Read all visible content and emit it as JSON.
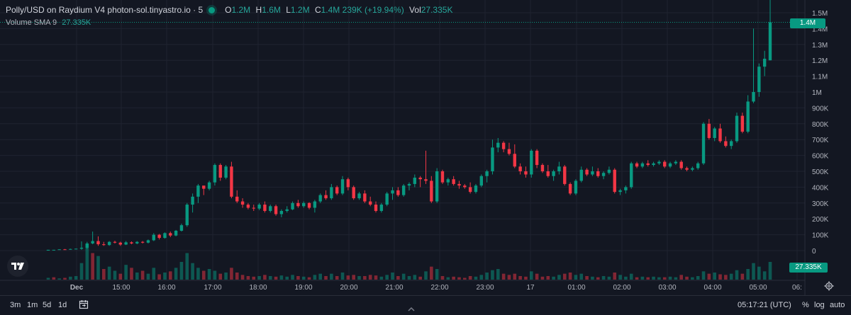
{
  "legend": {
    "symbol": "Polly/USD on Raydium V4 photon-sol.tinyastro.io · 5",
    "open_label": "O",
    "open": "1.2M",
    "high_label": "H",
    "high": "1.6M",
    "low_label": "L",
    "low": "1.2M",
    "close_label": "C",
    "close": "1.4M",
    "change": "239K (+19.94%)",
    "vol_label": "Vol",
    "vol": "27.335K"
  },
  "volume_legend": {
    "label": "Volume",
    "sma": "SMA 9",
    "value": "27.335K"
  },
  "price_tag": "1.4M",
  "volume_tag": "27.335K",
  "toolbar": {
    "ranges": [
      "3m",
      "1m",
      "5d",
      "1d"
    ],
    "time": "05:17:21 (UTC)",
    "percent": "%",
    "log": "log",
    "auto": "auto"
  },
  "colors": {
    "up": "#089981",
    "down": "#f23645",
    "background": "#131722",
    "grid": "#1f2330"
  },
  "chart_data": {
    "type": "candlestick",
    "title": "Polly/USD on Raydium V4 photon-sol.tinyastro.io · 5",
    "y_ticks": [
      "1.5M",
      "1.4M",
      "1.3M",
      "1.2M",
      "1.1M",
      "1M",
      "900K",
      "800K",
      "700K",
      "600K",
      "500K",
      "400K",
      "300K",
      "200K",
      "100K",
      "0"
    ],
    "x_ticks": [
      "Dec",
      "15:00",
      "16:00",
      "17:00",
      "18:00",
      "19:00",
      "20:00",
      "21:00",
      "22:00",
      "23:00",
      "17",
      "01:00",
      "02:00",
      "03:00",
      "04:00",
      "05:00",
      "06:"
    ],
    "ylim": [
      0,
      1500000
    ],
    "grid": true,
    "candles": [
      [
        0,
        5,
        5,
        5
      ],
      [
        5,
        5,
        5,
        5
      ],
      [
        5,
        8,
        5,
        8
      ],
      [
        8,
        10,
        5,
        6
      ],
      [
        6,
        12,
        6,
        10
      ],
      [
        10,
        12,
        8,
        12
      ],
      [
        12,
        58,
        5,
        18
      ],
      [
        18,
        55,
        10,
        45
      ],
      [
        45,
        120,
        40,
        60
      ],
      [
        60,
        90,
        30,
        40
      ],
      [
        40,
        55,
        30,
        35
      ],
      [
        35,
        60,
        30,
        55
      ],
      [
        55,
        62,
        45,
        50
      ],
      [
        50,
        56,
        30,
        38
      ],
      [
        38,
        60,
        35,
        52
      ],
      [
        52,
        58,
        40,
        45
      ],
      [
        45,
        60,
        40,
        55
      ],
      [
        55,
        60,
        45,
        50
      ],
      [
        50,
        70,
        45,
        65
      ],
      [
        65,
        110,
        60,
        100
      ],
      [
        100,
        105,
        70,
        80
      ],
      [
        80,
        115,
        75,
        110
      ],
      [
        110,
        120,
        85,
        95
      ],
      [
        95,
        130,
        90,
        125
      ],
      [
        125,
        170,
        120,
        160
      ],
      [
        160,
        300,
        150,
        290
      ],
      [
        290,
        360,
        240,
        340
      ],
      [
        340,
        420,
        300,
        410
      ],
      [
        410,
        400,
        350,
        390
      ],
      [
        390,
        440,
        380,
        430
      ],
      [
        430,
        550,
        410,
        540
      ],
      [
        540,
        550,
        440,
        460
      ],
      [
        460,
        540,
        450,
        530
      ],
      [
        530,
        560,
        330,
        340
      ],
      [
        340,
        380,
        300,
        310
      ],
      [
        310,
        330,
        270,
        290
      ],
      [
        290,
        300,
        260,
        270
      ],
      [
        270,
        290,
        250,
        265
      ],
      [
        265,
        300,
        255,
        290
      ],
      [
        290,
        310,
        240,
        250
      ],
      [
        250,
        290,
        240,
        280
      ],
      [
        280,
        290,
        220,
        230
      ],
      [
        230,
        260,
        210,
        250
      ],
      [
        250,
        280,
        240,
        260
      ],
      [
        260,
        310,
        255,
        300
      ],
      [
        300,
        320,
        270,
        280
      ],
      [
        280,
        310,
        270,
        300
      ],
      [
        300,
        305,
        260,
        270
      ],
      [
        270,
        320,
        240,
        310
      ],
      [
        310,
        360,
        300,
        350
      ],
      [
        350,
        380,
        320,
        330
      ],
      [
        330,
        420,
        320,
        400
      ],
      [
        400,
        410,
        350,
        360
      ],
      [
        360,
        470,
        350,
        450
      ],
      [
        450,
        460,
        380,
        400
      ],
      [
        400,
        410,
        320,
        330
      ],
      [
        330,
        370,
        320,
        360
      ],
      [
        360,
        380,
        300,
        310
      ],
      [
        310,
        340,
        280,
        290
      ],
      [
        290,
        310,
        240,
        250
      ],
      [
        250,
        300,
        240,
        290
      ],
      [
        290,
        370,
        280,
        360
      ],
      [
        360,
        400,
        320,
        380
      ],
      [
        380,
        400,
        340,
        350
      ],
      [
        350,
        420,
        340,
        410
      ],
      [
        410,
        430,
        380,
        420
      ],
      [
        420,
        480,
        400,
        460
      ],
      [
        460,
        470,
        400,
        450
      ],
      [
        450,
        630,
        420,
        440
      ],
      [
        440,
        470,
        300,
        310
      ],
      [
        310,
        520,
        300,
        500
      ],
      [
        500,
        510,
        420,
        430
      ],
      [
        430,
        460,
        410,
        450
      ],
      [
        450,
        470,
        410,
        420
      ],
      [
        420,
        440,
        390,
        410
      ],
      [
        410,
        420,
        390,
        400
      ],
      [
        400,
        430,
        360,
        370
      ],
      [
        370,
        420,
        360,
        410
      ],
      [
        410,
        480,
        400,
        470
      ],
      [
        470,
        510,
        430,
        500
      ],
      [
        500,
        700,
        480,
        650
      ],
      [
        650,
        710,
        620,
        680
      ],
      [
        680,
        690,
        620,
        640
      ],
      [
        640,
        680,
        600,
        610
      ],
      [
        610,
        670,
        520,
        530
      ],
      [
        530,
        550,
        480,
        500
      ],
      [
        500,
        530,
        460,
        480
      ],
      [
        480,
        640,
        460,
        630
      ],
      [
        630,
        640,
        520,
        540
      ],
      [
        540,
        550,
        490,
        500
      ],
      [
        500,
        540,
        460,
        470
      ],
      [
        470,
        510,
        440,
        500
      ],
      [
        500,
        560,
        480,
        530
      ],
      [
        530,
        540,
        410,
        420
      ],
      [
        420,
        430,
        350,
        360
      ],
      [
        360,
        450,
        350,
        440
      ],
      [
        440,
        530,
        430,
        510
      ],
      [
        510,
        520,
        470,
        480
      ],
      [
        480,
        530,
        470,
        500
      ],
      [
        500,
        520,
        460,
        470
      ],
      [
        470,
        500,
        450,
        490
      ],
      [
        490,
        530,
        480,
        510
      ],
      [
        510,
        520,
        360,
        370
      ],
      [
        370,
        390,
        350,
        380
      ],
      [
        380,
        410,
        360,
        400
      ],
      [
        400,
        560,
        390,
        550
      ],
      [
        550,
        560,
        520,
        530
      ],
      [
        530,
        560,
        520,
        550
      ],
      [
        550,
        570,
        530,
        540
      ],
      [
        540,
        560,
        530,
        550
      ],
      [
        550,
        570,
        540,
        560
      ],
      [
        560,
        570,
        520,
        530
      ],
      [
        530,
        560,
        520,
        550
      ],
      [
        550,
        570,
        540,
        560
      ],
      [
        560,
        570,
        510,
        520
      ],
      [
        520,
        530,
        500,
        510
      ],
      [
        510,
        530,
        500,
        520
      ],
      [
        520,
        560,
        510,
        550
      ],
      [
        550,
        810,
        540,
        800
      ],
      [
        800,
        830,
        700,
        710
      ],
      [
        710,
        780,
        690,
        770
      ],
      [
        770,
        800,
        680,
        690
      ],
      [
        690,
        720,
        650,
        660
      ],
      [
        660,
        700,
        640,
        690
      ],
      [
        690,
        870,
        680,
        850
      ],
      [
        850,
        870,
        740,
        750
      ],
      [
        750,
        980,
        740,
        940
      ],
      [
        940,
        1400,
        930,
        1000
      ],
      [
        1000,
        1180,
        970,
        1160
      ],
      [
        1160,
        1260,
        1100,
        1210
      ],
      [
        1200,
        1600,
        1200,
        1440
      ]
    ],
    "volume": [
      [
        3,
        1
      ],
      [
        4,
        0
      ],
      [
        2,
        1
      ],
      [
        3,
        0
      ],
      [
        5,
        1
      ],
      [
        6,
        1
      ],
      [
        28,
        1
      ],
      [
        60,
        1
      ],
      [
        45,
        0
      ],
      [
        40,
        1
      ],
      [
        18,
        0
      ],
      [
        22,
        1
      ],
      [
        15,
        1
      ],
      [
        10,
        0
      ],
      [
        25,
        1
      ],
      [
        20,
        0
      ],
      [
        12,
        1
      ],
      [
        15,
        0
      ],
      [
        10,
        1
      ],
      [
        20,
        1
      ],
      [
        9,
        0
      ],
      [
        12,
        1
      ],
      [
        14,
        0
      ],
      [
        20,
        1
      ],
      [
        30,
        1
      ],
      [
        45,
        1
      ],
      [
        28,
        1
      ],
      [
        20,
        1
      ],
      [
        15,
        0
      ],
      [
        18,
        1
      ],
      [
        15,
        1
      ],
      [
        10,
        0
      ],
      [
        12,
        1
      ],
      [
        20,
        0
      ],
      [
        12,
        0
      ],
      [
        8,
        0
      ],
      [
        6,
        0
      ],
      [
        5,
        0
      ],
      [
        6,
        1
      ],
      [
        8,
        0
      ],
      [
        6,
        1
      ],
      [
        5,
        0
      ],
      [
        7,
        1
      ],
      [
        5,
        1
      ],
      [
        8,
        1
      ],
      [
        6,
        0
      ],
      [
        5,
        1
      ],
      [
        4,
        0
      ],
      [
        8,
        1
      ],
      [
        10,
        1
      ],
      [
        6,
        0
      ],
      [
        10,
        1
      ],
      [
        6,
        0
      ],
      [
        12,
        1
      ],
      [
        7,
        0
      ],
      [
        8,
        0
      ],
      [
        6,
        1
      ],
      [
        6,
        0
      ],
      [
        8,
        0
      ],
      [
        7,
        0
      ],
      [
        5,
        1
      ],
      [
        8,
        1
      ],
      [
        12,
        1
      ],
      [
        6,
        0
      ],
      [
        10,
        1
      ],
      [
        6,
        1
      ],
      [
        8,
        1
      ],
      [
        5,
        0
      ],
      [
        14,
        1
      ],
      [
        22,
        0
      ],
      [
        18,
        1
      ],
      [
        6,
        0
      ],
      [
        4,
        1
      ],
      [
        5,
        0
      ],
      [
        4,
        0
      ],
      [
        3,
        0
      ],
      [
        6,
        0
      ],
      [
        5,
        1
      ],
      [
        8,
        1
      ],
      [
        12,
        1
      ],
      [
        16,
        1
      ],
      [
        18,
        1
      ],
      [
        10,
        0
      ],
      [
        8,
        0
      ],
      [
        10,
        0
      ],
      [
        6,
        0
      ],
      [
        5,
        0
      ],
      [
        14,
        1
      ],
      [
        10,
        0
      ],
      [
        5,
        0
      ],
      [
        6,
        0
      ],
      [
        5,
        1
      ],
      [
        8,
        1
      ],
      [
        10,
        0
      ],
      [
        12,
        0
      ],
      [
        8,
        1
      ],
      [
        10,
        1
      ],
      [
        6,
        0
      ],
      [
        5,
        1
      ],
      [
        4,
        0
      ],
      [
        6,
        1
      ],
      [
        5,
        1
      ],
      [
        12,
        0
      ],
      [
        8,
        1
      ],
      [
        5,
        1
      ],
      [
        10,
        1
      ],
      [
        4,
        0
      ],
      [
        5,
        1
      ],
      [
        4,
        0
      ],
      [
        5,
        1
      ],
      [
        4,
        1
      ],
      [
        4,
        0
      ],
      [
        5,
        1
      ],
      [
        4,
        1
      ],
      [
        8,
        0
      ],
      [
        5,
        0
      ],
      [
        4,
        1
      ],
      [
        6,
        1
      ],
      [
        14,
        1
      ],
      [
        10,
        0
      ],
      [
        12,
        1
      ],
      [
        9,
        0
      ],
      [
        8,
        0
      ],
      [
        10,
        1
      ],
      [
        16,
        1
      ],
      [
        10,
        0
      ],
      [
        18,
        1
      ],
      [
        28,
        1
      ],
      [
        22,
        1
      ],
      [
        14,
        1
      ],
      [
        30,
        1
      ]
    ]
  }
}
